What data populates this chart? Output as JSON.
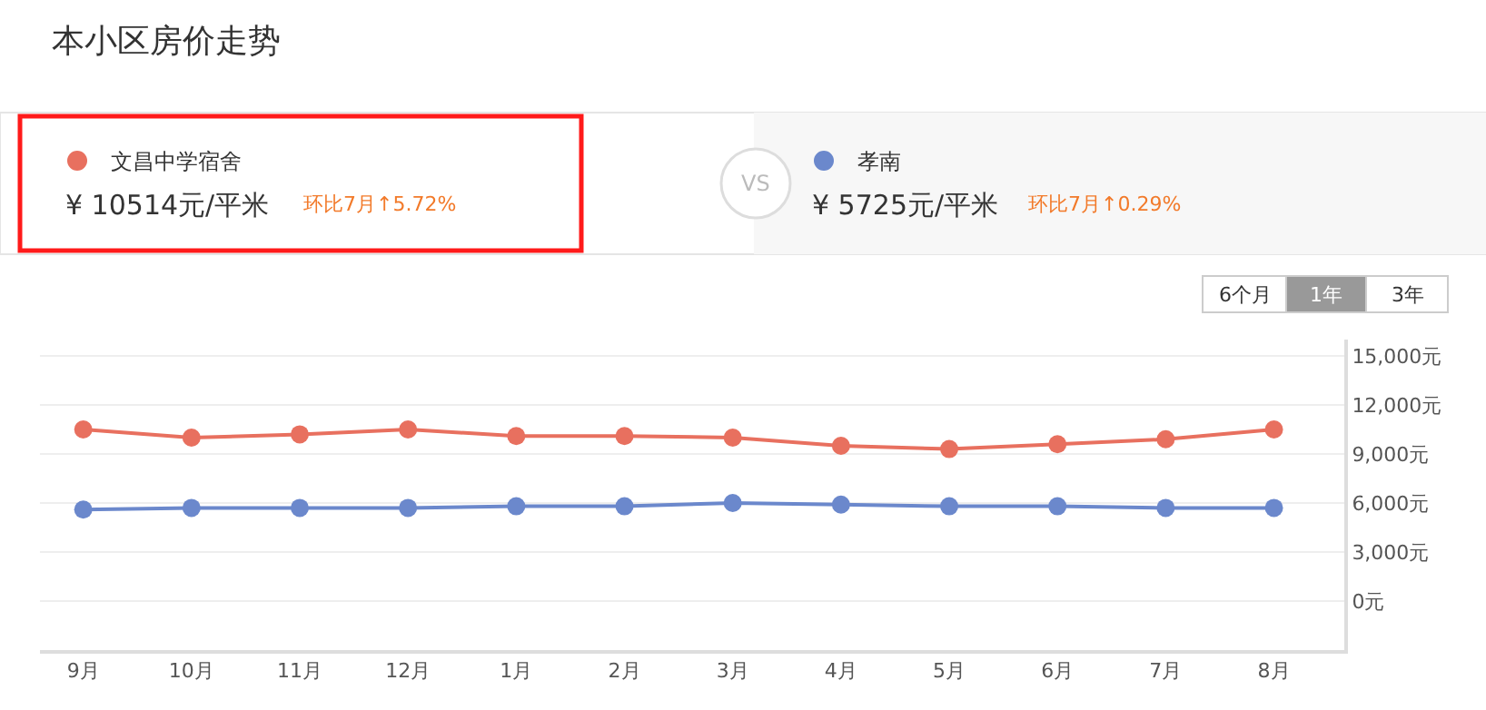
{
  "chart_data": {
    "type": "line",
    "title": "本小区房价走势",
    "categories": [
      "9月",
      "10月",
      "11月",
      "12月",
      "1月",
      "2月",
      "3月",
      "4月",
      "5月",
      "6月",
      "7月",
      "8月"
    ],
    "series": [
      {
        "name": "文昌中学宿舍",
        "color": "#e8705f",
        "values": [
          10500,
          10000,
          10200,
          10500,
          10100,
          10100,
          10000,
          9500,
          9300,
          9600,
          9900,
          10500
        ]
      },
      {
        "name": "孝南",
        "color": "#6b88cc",
        "values": [
          5600,
          5700,
          5700,
          5700,
          5800,
          5800,
          6000,
          5900,
          5800,
          5800,
          5700,
          5700
        ]
      }
    ],
    "annotations": [
      "¥ 10514元/平米",
      "环比7月↑5.72%",
      "¥ 5725元/平米",
      "环比7月↑0.29%",
      "VS",
      "6个月",
      "1年",
      "3年"
    ],
    "ylim": [
      -3000,
      16000
    ],
    "yticks": [
      {
        "value": 0,
        "label": "0元"
      },
      {
        "value": 3000,
        "label": "3,000元"
      },
      {
        "value": 6000,
        "label": "6,000元"
      },
      {
        "value": 9000,
        "label": "9,000元"
      },
      {
        "value": 12000,
        "label": "12,000元"
      },
      {
        "value": 15000,
        "label": "15,000元"
      }
    ],
    "grid": "y",
    "legend": "top left",
    "marker": "circle",
    "line_style": "solid"
  }
}
